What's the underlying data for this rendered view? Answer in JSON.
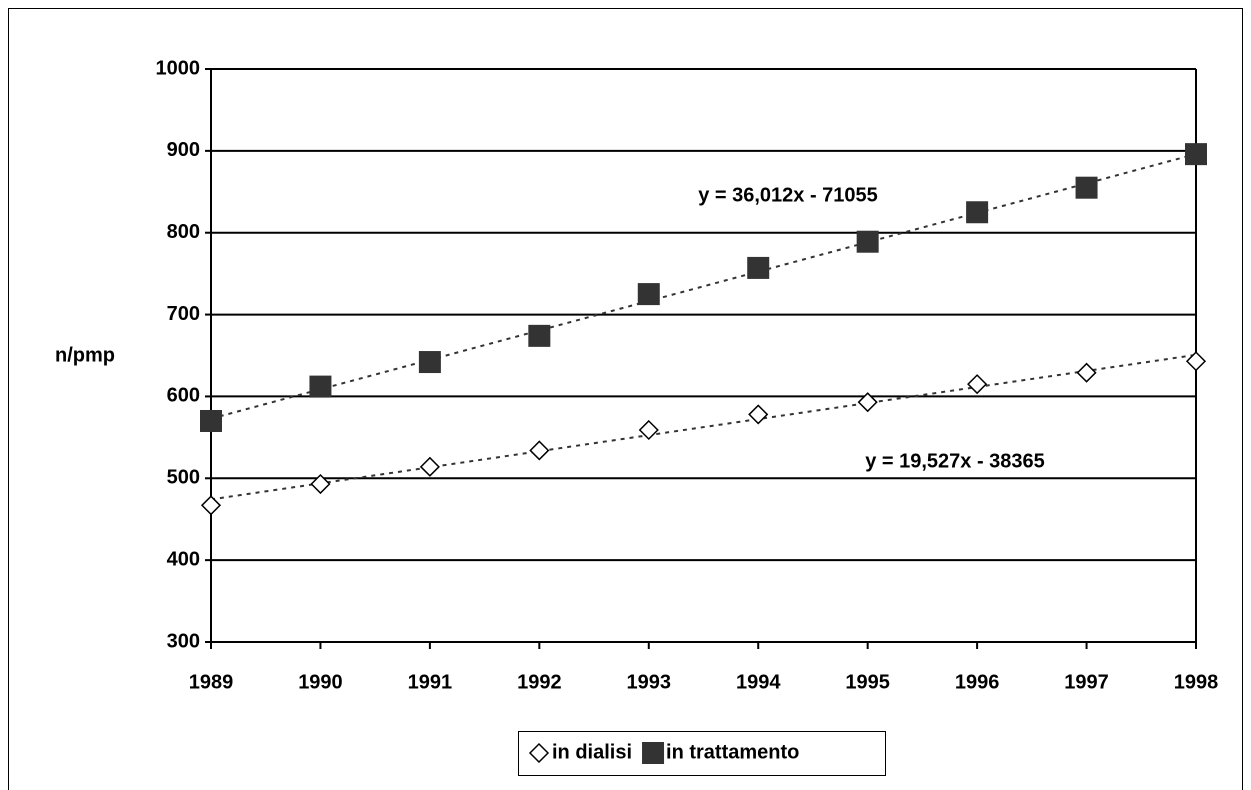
{
  "chart_data": {
    "type": "scatter",
    "ylabel": "n/pmp",
    "x": [
      1989,
      1990,
      1991,
      1992,
      1993,
      1994,
      1995,
      1996,
      1997,
      1998
    ],
    "xlim": [
      1989,
      1998
    ],
    "xticks": [
      1989,
      1990,
      1991,
      1992,
      1993,
      1994,
      1995,
      1996,
      1997,
      1998
    ],
    "ylim": [
      300,
      1000
    ],
    "yticks": [
      300,
      400,
      500,
      600,
      700,
      800,
      900,
      1000
    ],
    "grid": true,
    "legend": "bottom",
    "trendline": true,
    "series": [
      {
        "name": "in dialisi",
        "color": "#000000",
        "marker": "diamond",
        "values": [
          467,
          493,
          514,
          534,
          559,
          578,
          593,
          615,
          629,
          643
        ]
      },
      {
        "name": "in trattamento",
        "color": "#333333",
        "marker": "square",
        "values": [
          570,
          612,
          642,
          674,
          725,
          757,
          789,
          825,
          855,
          896
        ]
      }
    ],
    "annotations": [
      "y = 36,012x - 71055",
      "y = 19,527x - 38365"
    ]
  }
}
